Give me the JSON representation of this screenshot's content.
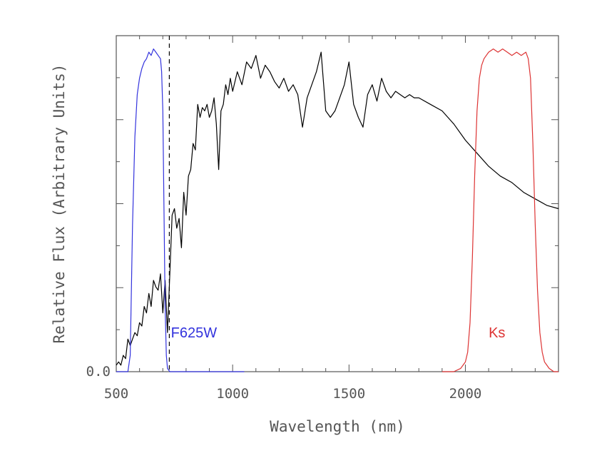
{
  "chart_data": {
    "type": "line",
    "title": "",
    "xlabel": "Wavelength (nm)",
    "ylabel": "Relative Flux (Arbitrary Units)",
    "xlim": [
      500,
      2400
    ],
    "ylim": [
      0,
      1
    ],
    "x_ticks": [
      500,
      1000,
      1500,
      2000
    ],
    "x_tick_labels": [
      "500",
      "1000",
      "1500",
      "2000"
    ],
    "y_ticks": [
      0.0
    ],
    "y_tick_labels": [
      "0.0"
    ],
    "grid": false,
    "legend": "none",
    "annotations": [
      {
        "text": "F625W",
        "x": 735,
        "y": 0.105,
        "color": "#3333dd"
      },
      {
        "text": "Ks",
        "x": 2100,
        "y": 0.105,
        "color": "#dd3333"
      }
    ],
    "vertical_lines": [
      {
        "x": 728,
        "style": "dashed",
        "color": "#000000"
      }
    ],
    "series": [
      {
        "color": "#000000",
        "x": [
          500,
          510,
          520,
          530,
          540,
          550,
          560,
          570,
          580,
          590,
          600,
          610,
          620,
          630,
          640,
          650,
          660,
          670,
          680,
          690,
          700,
          710,
          720,
          730,
          740,
          750,
          760,
          770,
          780,
          790,
          800,
          810,
          820,
          830,
          840,
          850,
          860,
          870,
          880,
          890,
          900,
          910,
          920,
          930,
          940,
          950,
          960,
          970,
          980,
          990,
          1000,
          1020,
          1040,
          1060,
          1080,
          1100,
          1120,
          1140,
          1160,
          1180,
          1200,
          1220,
          1240,
          1260,
          1280,
          1300,
          1320,
          1340,
          1360,
          1380,
          1400,
          1420,
          1440,
          1460,
          1480,
          1500,
          1520,
          1540,
          1560,
          1580,
          1600,
          1620,
          1640,
          1660,
          1680,
          1700,
          1720,
          1740,
          1760,
          1780,
          1800,
          1850,
          1900,
          1950,
          2000,
          2050,
          2100,
          2150,
          2200,
          2250,
          2300,
          2350,
          2400
        ],
        "values": [
          0.02,
          0.03,
          0.02,
          0.05,
          0.04,
          0.1,
          0.08,
          0.1,
          0.12,
          0.11,
          0.15,
          0.14,
          0.2,
          0.18,
          0.24,
          0.2,
          0.28,
          0.26,
          0.25,
          0.3,
          0.18,
          0.28,
          0.12,
          0.3,
          0.48,
          0.5,
          0.44,
          0.47,
          0.38,
          0.55,
          0.48,
          0.6,
          0.62,
          0.7,
          0.68,
          0.82,
          0.78,
          0.81,
          0.8,
          0.82,
          0.78,
          0.8,
          0.84,
          0.76,
          0.62,
          0.8,
          0.82,
          0.88,
          0.85,
          0.9,
          0.86,
          0.92,
          0.88,
          0.95,
          0.93,
          0.97,
          0.9,
          0.94,
          0.92,
          0.89,
          0.87,
          0.9,
          0.86,
          0.88,
          0.85,
          0.75,
          0.84,
          0.88,
          0.92,
          0.98,
          0.8,
          0.78,
          0.8,
          0.84,
          0.88,
          0.95,
          0.82,
          0.78,
          0.75,
          0.85,
          0.88,
          0.83,
          0.9,
          0.86,
          0.84,
          0.86,
          0.85,
          0.84,
          0.85,
          0.84,
          0.84,
          0.82,
          0.8,
          0.76,
          0.71,
          0.67,
          0.63,
          0.6,
          0.58,
          0.55,
          0.53,
          0.51,
          0.5
        ]
      },
      {
        "color": "#3333dd",
        "x": [
          500,
          550,
          560,
          570,
          580,
          590,
          600,
          610,
          620,
          630,
          640,
          650,
          660,
          670,
          680,
          690,
          695,
          700,
          705,
          710,
          715,
          720,
          730,
          740,
          1050
        ],
        "values": [
          0.0,
          0.0,
          0.05,
          0.45,
          0.72,
          0.85,
          0.9,
          0.93,
          0.95,
          0.96,
          0.98,
          0.97,
          0.99,
          0.98,
          0.97,
          0.96,
          0.92,
          0.8,
          0.5,
          0.2,
          0.05,
          0.01,
          0.0,
          0.0,
          0.0
        ]
      },
      {
        "color": "#dd3333",
        "x": [
          1900,
          1950,
          1980,
          2000,
          2010,
          2020,
          2030,
          2040,
          2050,
          2060,
          2070,
          2080,
          2090,
          2100,
          2120,
          2140,
          2160,
          2180,
          2200,
          2220,
          2240,
          2260,
          2270,
          2280,
          2290,
          2300,
          2310,
          2320,
          2330,
          2340,
          2350,
          2360,
          2380,
          2400
        ],
        "values": [
          0.0,
          0.0,
          0.01,
          0.03,
          0.06,
          0.15,
          0.35,
          0.6,
          0.8,
          0.9,
          0.94,
          0.96,
          0.97,
          0.98,
          0.99,
          0.98,
          0.99,
          0.98,
          0.97,
          0.98,
          0.97,
          0.98,
          0.96,
          0.9,
          0.7,
          0.45,
          0.25,
          0.12,
          0.06,
          0.03,
          0.02,
          0.01,
          0.0,
          0.0
        ]
      }
    ]
  }
}
